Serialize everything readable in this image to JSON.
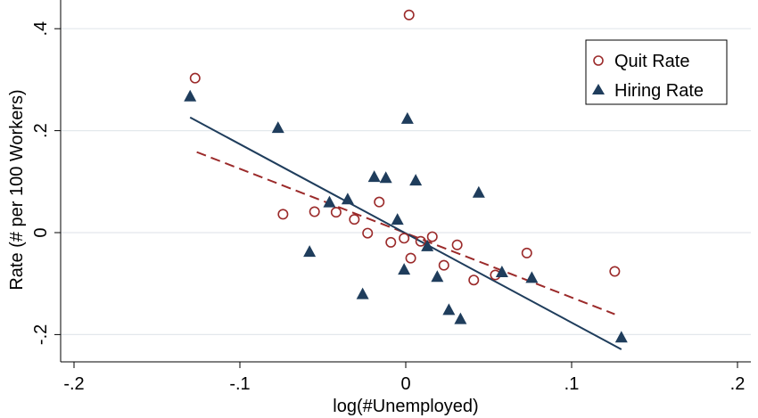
{
  "chart_data": {
    "type": "scatter",
    "title": "",
    "xlabel": "log(#Unemployed)",
    "ylabel": "Rate (# per 100 Workers)",
    "xlim": [
      -0.2,
      0.2
    ],
    "ylim": [
      -0.25,
      0.45
    ],
    "x_ticks": [
      {
        "value": -0.2,
        "label": "-.2"
      },
      {
        "value": -0.1,
        "label": "-.1"
      },
      {
        "value": 0,
        "label": "0"
      },
      {
        "value": 0.1,
        "label": ".1"
      },
      {
        "value": 0.2,
        "label": ".2"
      }
    ],
    "y_ticks": [
      {
        "value": -0.2,
        "label": "-.2"
      },
      {
        "value": 0,
        "label": "0"
      },
      {
        "value": 0.2,
        "label": ".2"
      },
      {
        "value": 0.4,
        "label": ".4"
      }
    ],
    "grid": {
      "y": true,
      "x": false,
      "color": "#e3e8ec"
    },
    "legend": {
      "position": "top-right"
    },
    "series": [
      {
        "name": "Quit Rate",
        "marker": "hollow-circle",
        "color": "#9b2a2a",
        "points": [
          {
            "x": -0.127,
            "y": 0.303
          },
          {
            "x": -0.074,
            "y": 0.036
          },
          {
            "x": -0.055,
            "y": 0.041
          },
          {
            "x": -0.042,
            "y": 0.04
          },
          {
            "x": -0.031,
            "y": 0.026
          },
          {
            "x": -0.023,
            "y": -0.001
          },
          {
            "x": -0.016,
            "y": 0.06
          },
          {
            "x": -0.009,
            "y": -0.019
          },
          {
            "x": -0.001,
            "y": -0.011
          },
          {
            "x": 0.002,
            "y": 0.427
          },
          {
            "x": 0.003,
            "y": -0.05
          },
          {
            "x": 0.009,
            "y": -0.017
          },
          {
            "x": 0.016,
            "y": -0.008
          },
          {
            "x": 0.023,
            "y": -0.064
          },
          {
            "x": 0.031,
            "y": -0.024
          },
          {
            "x": 0.041,
            "y": -0.093
          },
          {
            "x": 0.054,
            "y": -0.083
          },
          {
            "x": 0.073,
            "y": -0.04
          },
          {
            "x": 0.126,
            "y": -0.076
          }
        ]
      },
      {
        "name": "Hiring Rate",
        "marker": "filled-triangle",
        "color": "#1f3d5c",
        "points": [
          {
            "x": -0.13,
            "y": 0.268
          },
          {
            "x": -0.077,
            "y": 0.206
          },
          {
            "x": -0.058,
            "y": -0.037
          },
          {
            "x": -0.046,
            "y": 0.06
          },
          {
            "x": -0.035,
            "y": 0.066
          },
          {
            "x": -0.026,
            "y": -0.12
          },
          {
            "x": -0.019,
            "y": 0.11
          },
          {
            "x": -0.012,
            "y": 0.108
          },
          {
            "x": -0.005,
            "y": 0.026
          },
          {
            "x": -0.001,
            "y": -0.072
          },
          {
            "x": 0.001,
            "y": 0.224
          },
          {
            "x": 0.006,
            "y": 0.103
          },
          {
            "x": 0.013,
            "y": -0.026
          },
          {
            "x": 0.019,
            "y": -0.086
          },
          {
            "x": 0.026,
            "y": -0.151
          },
          {
            "x": 0.033,
            "y": -0.169
          },
          {
            "x": 0.044,
            "y": 0.079
          },
          {
            "x": 0.058,
            "y": -0.077
          },
          {
            "x": 0.076,
            "y": -0.088
          },
          {
            "x": 0.13,
            "y": -0.205
          }
        ]
      }
    ],
    "fit_lines": [
      {
        "series": "Quit Rate",
        "style": "dashed",
        "color": "#9b2a2a",
        "x": [
          -0.126,
          0.126
        ],
        "y": [
          0.158,
          -0.16
        ]
      },
      {
        "series": "Hiring Rate",
        "style": "solid",
        "color": "#1f3d5c",
        "x": [
          -0.13,
          0.13
        ],
        "y": [
          0.226,
          -0.229
        ]
      }
    ]
  }
}
